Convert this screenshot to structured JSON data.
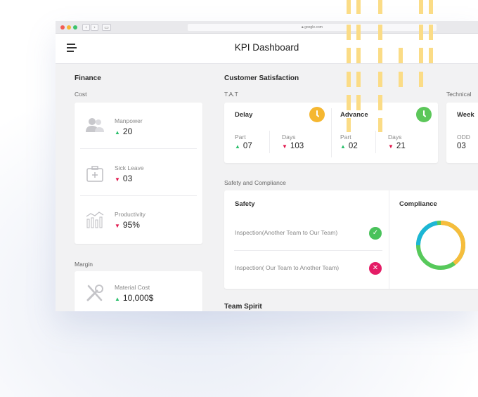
{
  "browser": {
    "url": "google.com",
    "traffic_colors": [
      "#f25c54",
      "#f7b733",
      "#3cc36b"
    ]
  },
  "header": {
    "title": "KPI Dashboard"
  },
  "finance": {
    "title": "Finance",
    "cost_label": "Cost",
    "items": [
      {
        "label": "Manpower",
        "value": "20",
        "trend": "up"
      },
      {
        "label": "Sick Leave",
        "value": "03",
        "trend": "down"
      },
      {
        "label": "Productivity",
        "value": "95%",
        "trend": "down"
      }
    ],
    "margin_label": "Margin",
    "margin_items": [
      {
        "label": "Material Cost",
        "value": "10,000$",
        "trend": "up"
      }
    ]
  },
  "customer": {
    "title": "Customer Satisfaction",
    "tat_label": "T.A.T",
    "technical_label": "Technical",
    "delay": {
      "title": "Delay",
      "part_label": "Part",
      "part_value": "07",
      "days_label": "Days",
      "days_value": "103"
    },
    "advance": {
      "title": "Advance",
      "part_label": "Part",
      "part_value": "02",
      "days_label": "Days",
      "days_value": "21"
    },
    "week": {
      "title": "Week",
      "odd_label": "ODD",
      "odd_value": "03"
    }
  },
  "safety": {
    "section_label": "Safety and Compliance",
    "safety_title": "Safety",
    "compliance_title": "Compliance",
    "inspections": [
      {
        "text": "Inspection(Another Team to Our Team)",
        "status": "pass"
      },
      {
        "text": "Inspection( Our Team to Another Team)",
        "status": "fail"
      }
    ]
  },
  "team_spirit": {
    "title": "Team Spirit"
  },
  "colors": {
    "up": "#2bbf6c",
    "down": "#e0164b",
    "clock_orange": "#f5b731",
    "clock_green": "#5cc75a",
    "donut_yellow": "#f6bd3c",
    "donut_green": "#57c95b",
    "donut_cyan": "#1cb6d6",
    "stripe": "#fbdc86"
  },
  "icons": [
    "menu-icon",
    "users-icon",
    "first-aid-icon",
    "productivity-chart-icon",
    "tools-icon",
    "clock-icon",
    "check-icon",
    "close-icon"
  ]
}
